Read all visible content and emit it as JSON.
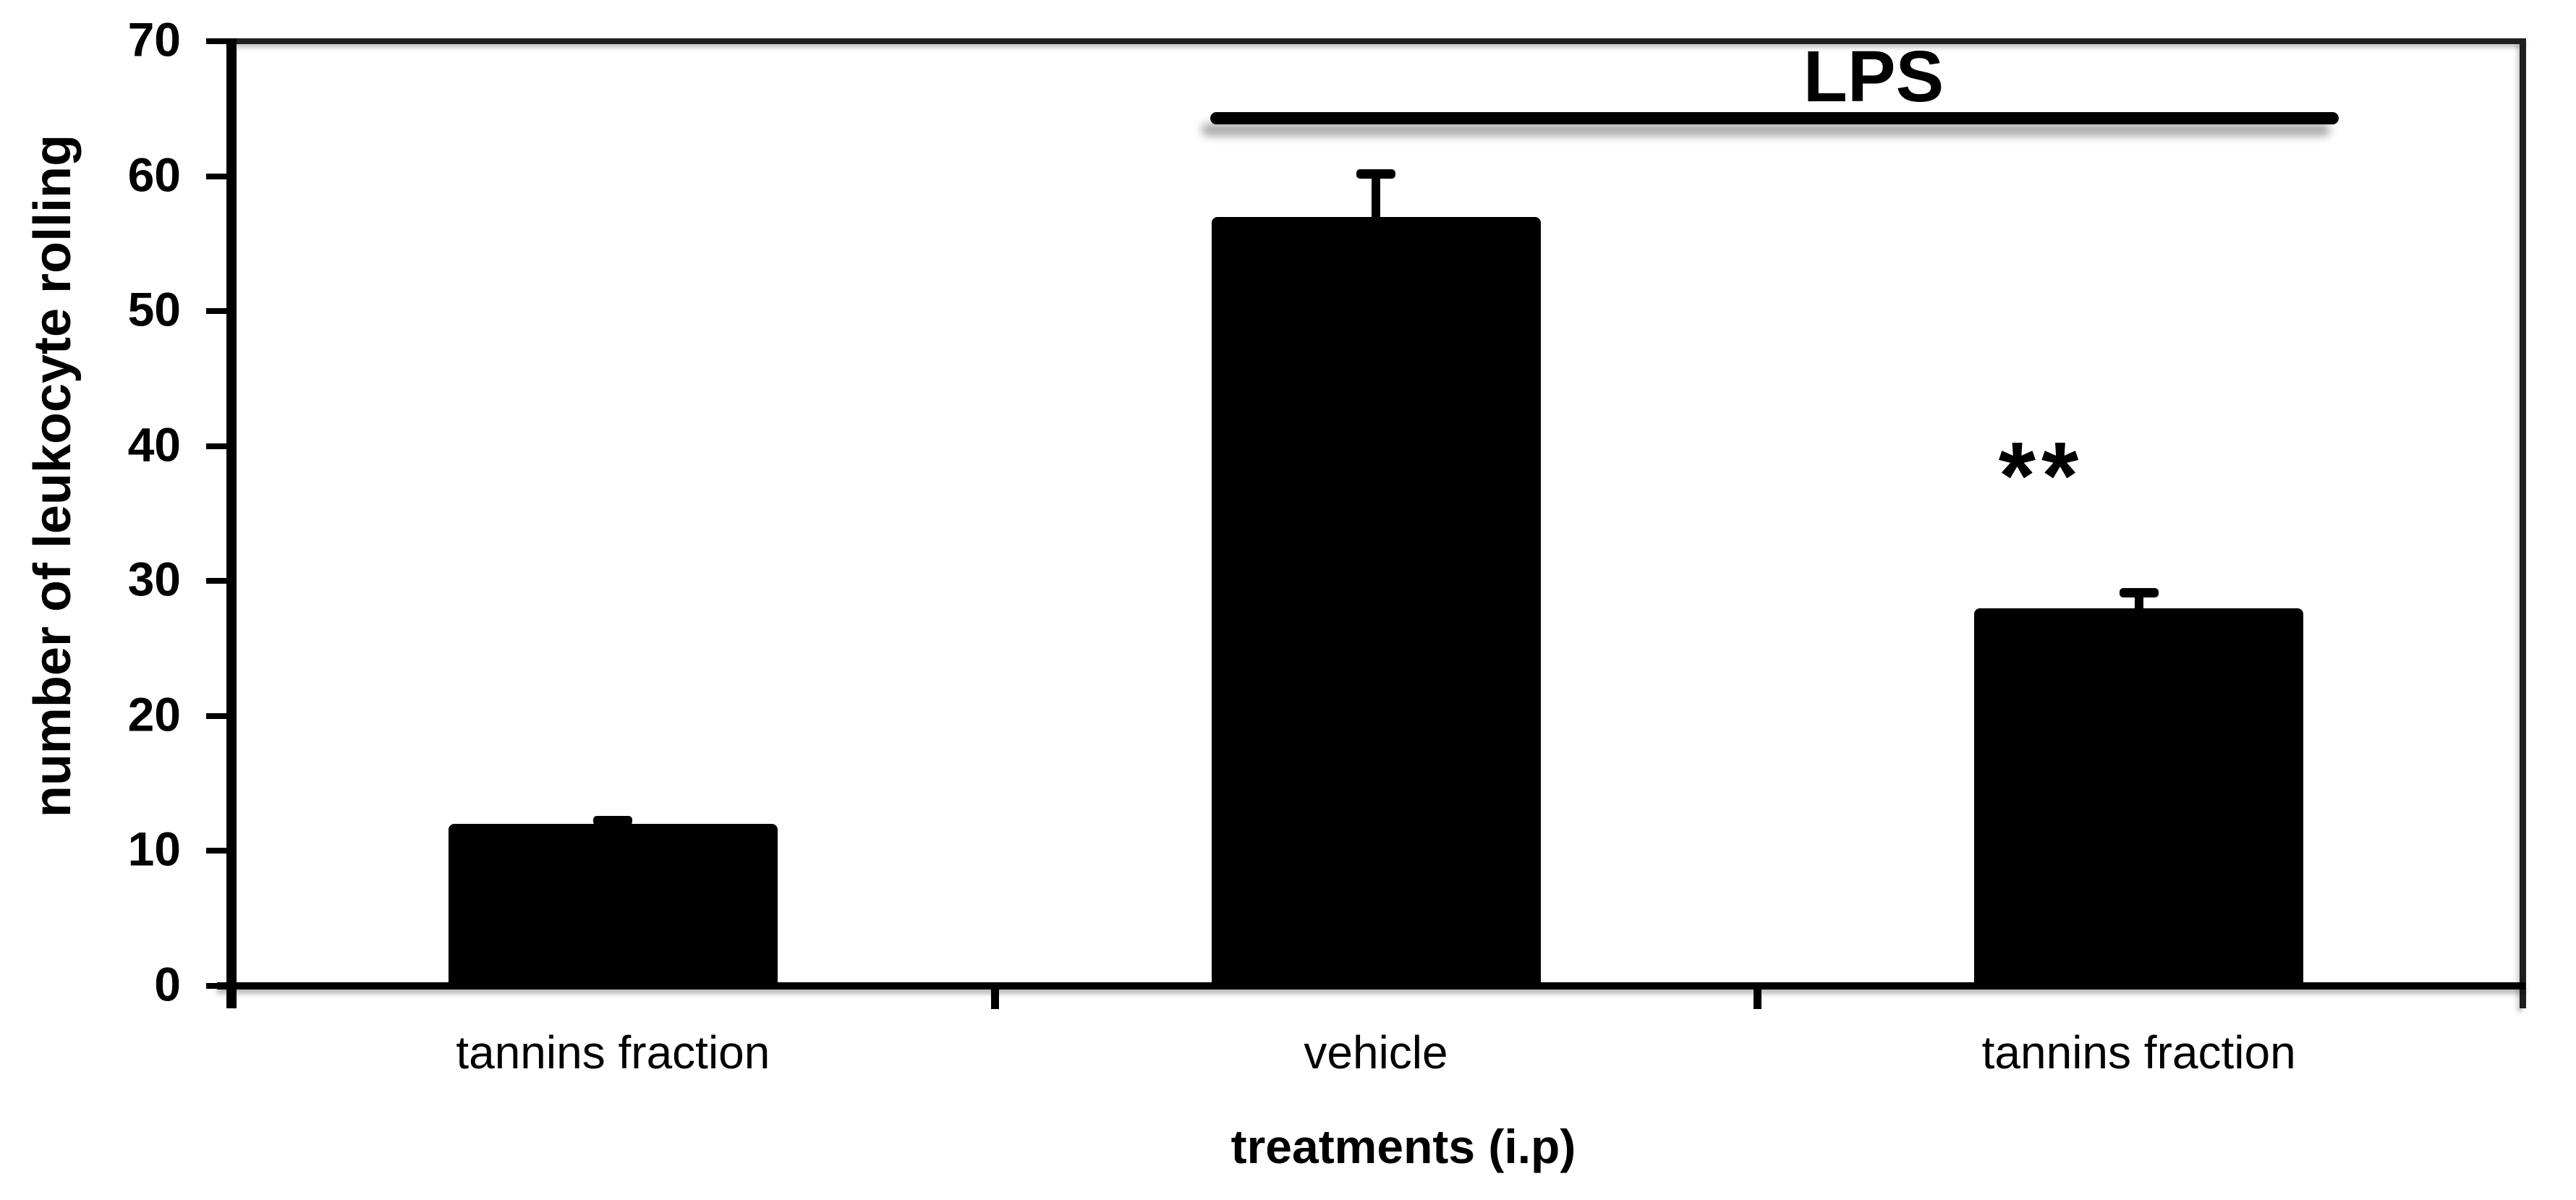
{
  "figure": {
    "background_color": "#ffffff",
    "bar_color": "#000000",
    "axis_color": "#000000",
    "frame_color": "#1f1f1f"
  },
  "chart_data": {
    "type": "bar",
    "title": "",
    "xlabel": "treatments (i.p)",
    "ylabel": "number of leukocyte rolling",
    "categories": [
      "tannins fraction",
      "vehicle",
      "tannins fraction"
    ],
    "values": [
      12,
      57,
      28
    ],
    "errors_plus": [
      0.6,
      3.5,
      1.5
    ],
    "ylim": [
      0,
      70
    ],
    "yticks": [
      0,
      10,
      20,
      30,
      40,
      50,
      60,
      70
    ],
    "grid": false,
    "legend": null,
    "bar_color": "#000000",
    "annotations": [
      {
        "type": "span-line-label",
        "label": "LPS",
        "spans_categories": [
          "vehicle",
          "tannins fraction"
        ]
      },
      {
        "type": "significance-marker",
        "label": "**",
        "category_index": 2
      }
    ]
  }
}
